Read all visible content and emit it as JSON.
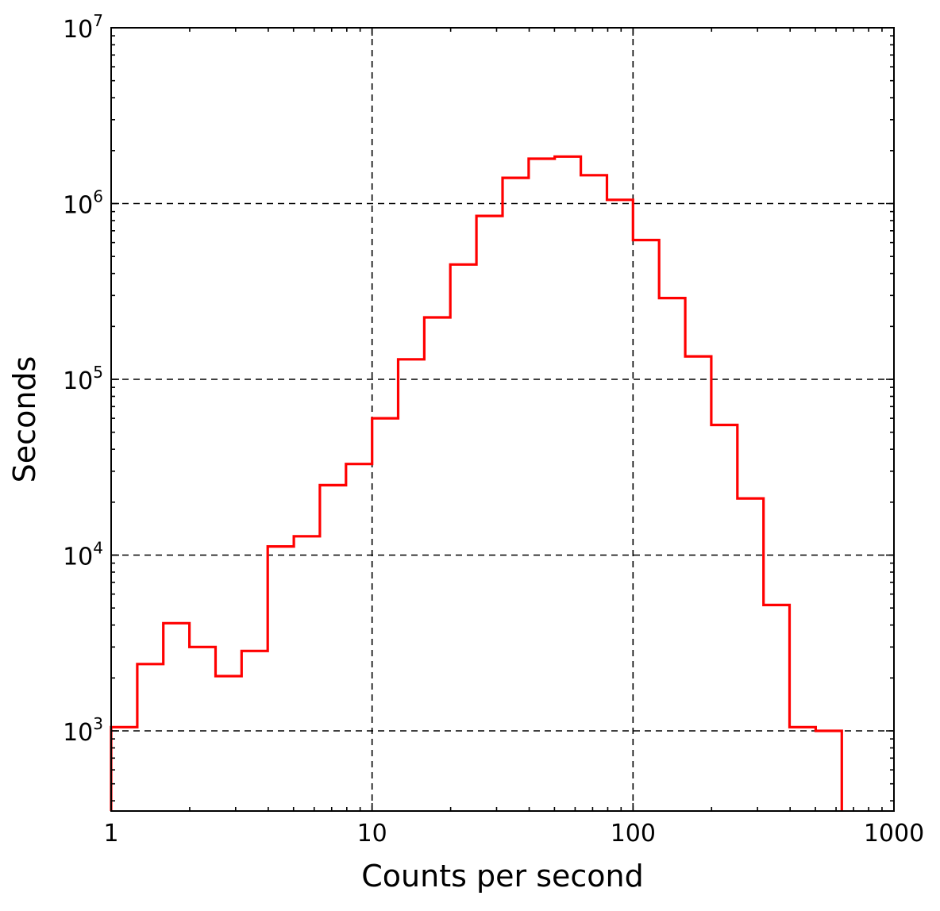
{
  "chart_data": {
    "type": "step-histogram",
    "title": "",
    "xlabel": "Counts per second",
    "ylabel": "Seconds",
    "x_scale": "log",
    "y_scale": "log",
    "xlim": [
      1,
      1000
    ],
    "ylim": [
      350,
      10000000
    ],
    "grid": true,
    "x_ticks": [
      {
        "value": 1,
        "label": "1"
      },
      {
        "value": 10,
        "label": "10"
      },
      {
        "value": 100,
        "label": "100"
      },
      {
        "value": 1000,
        "label": "1000"
      }
    ],
    "y_ticks": [
      {
        "value": 1000,
        "base": "10",
        "exp": "3"
      },
      {
        "value": 10000,
        "base": "10",
        "exp": "4"
      },
      {
        "value": 100000,
        "base": "10",
        "exp": "5"
      },
      {
        "value": 1000000,
        "base": "10",
        "exp": "6"
      },
      {
        "value": 10000000,
        "base": "10",
        "exp": "7"
      }
    ],
    "series": [
      {
        "color": "#ff0000",
        "bin_edges": [
          1.0,
          1.259,
          1.585,
          1.995,
          2.512,
          3.162,
          3.981,
          5.012,
          6.31,
          7.943,
          10.0,
          12.59,
          15.85,
          19.95,
          25.12,
          31.62,
          39.81,
          50.12,
          63.1,
          79.43,
          100.0,
          125.9,
          158.5,
          199.5,
          251.2,
          316.2,
          398.1,
          501.2,
          631.0
        ],
        "values": [
          1050,
          2400,
          4100,
          3000,
          2050,
          2850,
          11200,
          12800,
          25000,
          33000,
          60000,
          130000,
          225000,
          450000,
          850000,
          1400000,
          1800000,
          1850000,
          1450000,
          1050000,
          620000,
          290000,
          135000,
          55000,
          21000,
          5200,
          1050,
          1000
        ]
      }
    ]
  }
}
